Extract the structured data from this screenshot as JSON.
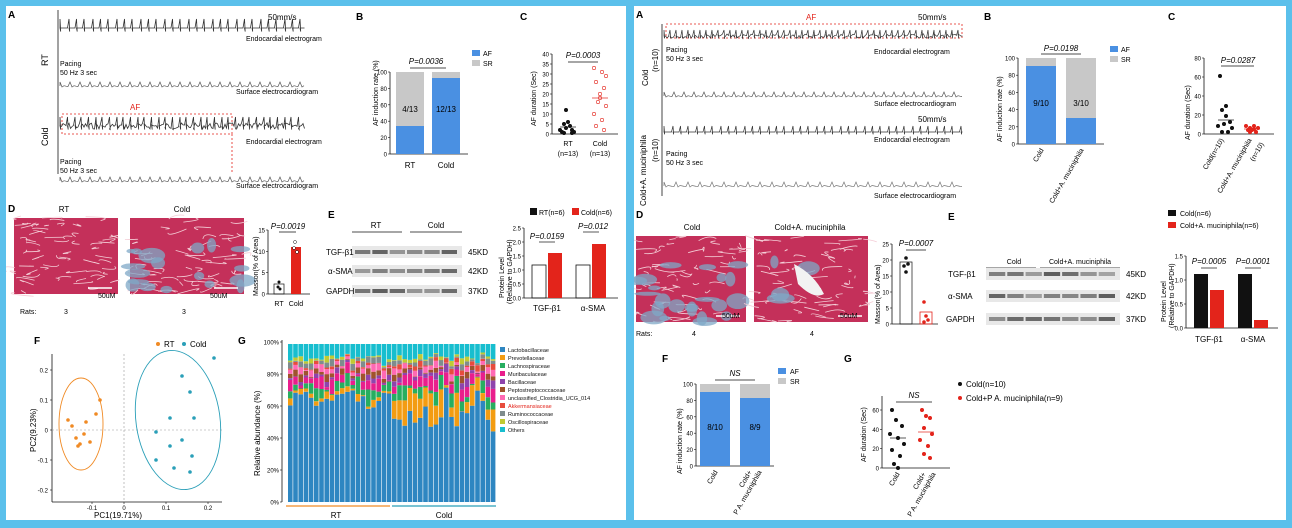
{
  "colors": {
    "frame": "#5bc0eb",
    "blue": "#4a90e2",
    "gray": "#c8c8c8",
    "red": "#e3241b",
    "black": "#111111",
    "orange": "#f08a24",
    "teal": "#2a9fb8"
  },
  "left": {
    "A": {
      "letter": "A",
      "speed": "50mm/s",
      "row_rt": "RT",
      "row_cold": "Cold",
      "endo": "Endocardial electrogram",
      "surface": "Surface electrocardiogram",
      "pacing1": "Pacing",
      "pacing2": "50 Hz 3 sec",
      "af": "AF"
    },
    "B": {
      "letter": "B",
      "ylabel": "AF induction rate (%)",
      "p": "P=0.0036",
      "legend": [
        "AF",
        "SR"
      ],
      "ticks": [
        "0",
        "20",
        "40",
        "60",
        "80",
        "100"
      ],
      "categories": [
        "RT",
        "Cold"
      ],
      "bar_labels": [
        "4/13",
        "12/13"
      ]
    },
    "C": {
      "letter": "C",
      "ylabel": "AF duration (Sec)",
      "p": "P=0.0003",
      "ticks": [
        "0",
        "5",
        "10",
        "15",
        "20",
        "25",
        "30",
        "35",
        "40"
      ],
      "cat1": "RT",
      "n1": "(n=13)",
      "cat2": "Cold",
      "n2": "(n=13)"
    },
    "D": {
      "letter": "D",
      "img1": "RT",
      "img2": "Cold",
      "scale": "50uM",
      "rats": "Rats:",
      "n1": "3",
      "n2": "3",
      "p": "P=0.0019",
      "ylabel": "Masson(% of Area)",
      "ticks": [
        "0",
        "5",
        "10",
        "15"
      ],
      "categories": [
        "RT",
        "Cold"
      ]
    },
    "E": {
      "letter": "E",
      "rt": "RT",
      "cold": "Cold",
      "blots": [
        "TGF-β1",
        "α-SMA",
        "GAPDH"
      ],
      "kd": [
        "45KD",
        "42KD",
        "37KD"
      ],
      "legend": [
        "RT(n=6)",
        "Cold(n=6)"
      ],
      "p1": "P=0.0159",
      "p2": "P=0.012",
      "ylabel1": "Protein Level",
      "ylabel2": "(Relative to GAPDH)",
      "ticks": [
        "0.0",
        "0.5",
        "1.0",
        "1.5",
        "2.0",
        "2.5"
      ],
      "groups": [
        "TGF-β1",
        "α-SMA"
      ]
    },
    "F": {
      "letter": "F",
      "legend": [
        "RT",
        "Cold"
      ],
      "ylabel": "PC2(9.23%)",
      "xlabel": "PC1(19.71%)",
      "yticks": [
        "0.2",
        "0.1",
        "0",
        "-0.1",
        "-0.2"
      ],
      "xticks": [
        "-0.1",
        "0",
        "0.1",
        "0.2"
      ]
    },
    "G": {
      "letter": "G",
      "ylabel": "Relative abundance (%)",
      "ticks": [
        "0%",
        "20%",
        "40%",
        "60%",
        "80%",
        "100%"
      ],
      "groups": [
        "RT",
        "Cold"
      ],
      "legend": [
        {
          "name": "Lactobacillaceae",
          "color": "#2e86c1"
        },
        {
          "name": "Prevotellaceae",
          "color": "#f39c12"
        },
        {
          "name": "Lachnospiraceae",
          "color": "#27ae60"
        },
        {
          "name": "Muribaculaceae",
          "color": "#e91e8c"
        },
        {
          "name": "Bacillaceae",
          "color": "#8e44ad"
        },
        {
          "name": "Peptostreptococcaceae",
          "color": "#a0522d"
        },
        {
          "name": "unclassified_Clostridia_UCG_014",
          "color": "#ff69b4"
        },
        {
          "name": "Akkermansiaceae",
          "color": "#e74c3c"
        },
        {
          "name": "Ruminococcaceae",
          "color": "#7f8c8d"
        },
        {
          "name": "Oscillospiraceae",
          "color": "#c0ca33"
        },
        {
          "name": "Others",
          "color": "#17becf"
        }
      ]
    }
  },
  "right": {
    "A": {
      "letter": "A",
      "speed": "50mm/s",
      "af": "AF",
      "row1": "Cold",
      "row1n": "(n=10)",
      "row2": "Cold+A. muciniphila",
      "row2n": "(n=10)",
      "pacing1": "Pacing",
      "pacing2": "50 Hz 3 sec",
      "endo": "Endocardial electrogram",
      "surface": "Surface electrocardiogram"
    },
    "B": {
      "letter": "B",
      "ylabel": "AF induction rate (%)",
      "p": "P=0.0198",
      "legend": [
        "AF",
        "SR"
      ],
      "ticks": [
        "0",
        "20",
        "40",
        "60",
        "80",
        "100"
      ],
      "categories": [
        "Cold",
        "Cold+A. muciniphila"
      ],
      "bar_labels": [
        "9/10",
        "3/10"
      ]
    },
    "C": {
      "letter": "C",
      "ylabel": "AF duration (Sec)",
      "p": "P=0.0287",
      "ticks": [
        "0",
        "20",
        "40",
        "60",
        "80"
      ],
      "cat1": "Cold(n=10)",
      "cat2": "Cold+A. muciniphila",
      "cat2n": "(n=10)"
    },
    "D": {
      "letter": "D",
      "img1": "Cold",
      "img2": "Cold+A. muciniphila",
      "scale": "50uM",
      "rats": "Rats:",
      "n1": "4",
      "n2": "4",
      "p": "P=0.0007",
      "ylabel": "Masson(% of Area)",
      "ticks": [
        "0",
        "5",
        "10",
        "15",
        "20",
        "25"
      ]
    },
    "E": {
      "letter": "E",
      "cold": "Cold",
      "cold2": "Cold+A. muciniphila",
      "blots": [
        "TGF-β1",
        "α-SMA",
        "GAPDH"
      ],
      "kd": [
        "45KD",
        "42KD",
        "37KD"
      ],
      "legend": [
        "Cold(n=6)",
        "Cold+A. muciniphila(n=6)"
      ],
      "p1": "P=0.0005",
      "p2": "P=0.0001",
      "ylabel1": "Protein Level",
      "ylabel2": "(Relative to GAPDH)",
      "ticks": [
        "0.0",
        "0.5",
        "1.0",
        "1.5"
      ],
      "groups": [
        "TGF-β1",
        "α-SMA"
      ]
    },
    "F": {
      "letter": "F",
      "ylabel": "AF induction rate (%)",
      "ns": "NS",
      "legend": [
        "AF",
        "SR"
      ],
      "ticks": [
        "0",
        "20",
        "40",
        "60",
        "80",
        "100"
      ],
      "categories": [
        "Cold",
        "Cold+",
        "P A. muciniphila"
      ],
      "bar_labels": [
        "8/10",
        "8/9"
      ]
    },
    "G": {
      "letter": "G",
      "ylabel": "AF duration (Sec)",
      "ns": "NS",
      "ticks": [
        "0",
        "20",
        "40",
        "60"
      ],
      "legend": [
        "Cold(n=10)",
        "Cold+P A. muciniphila(n=9)"
      ],
      "cat1": "Cold",
      "cat2a": "Cold+",
      "cat2b": "P A. muciniphila"
    }
  }
}
